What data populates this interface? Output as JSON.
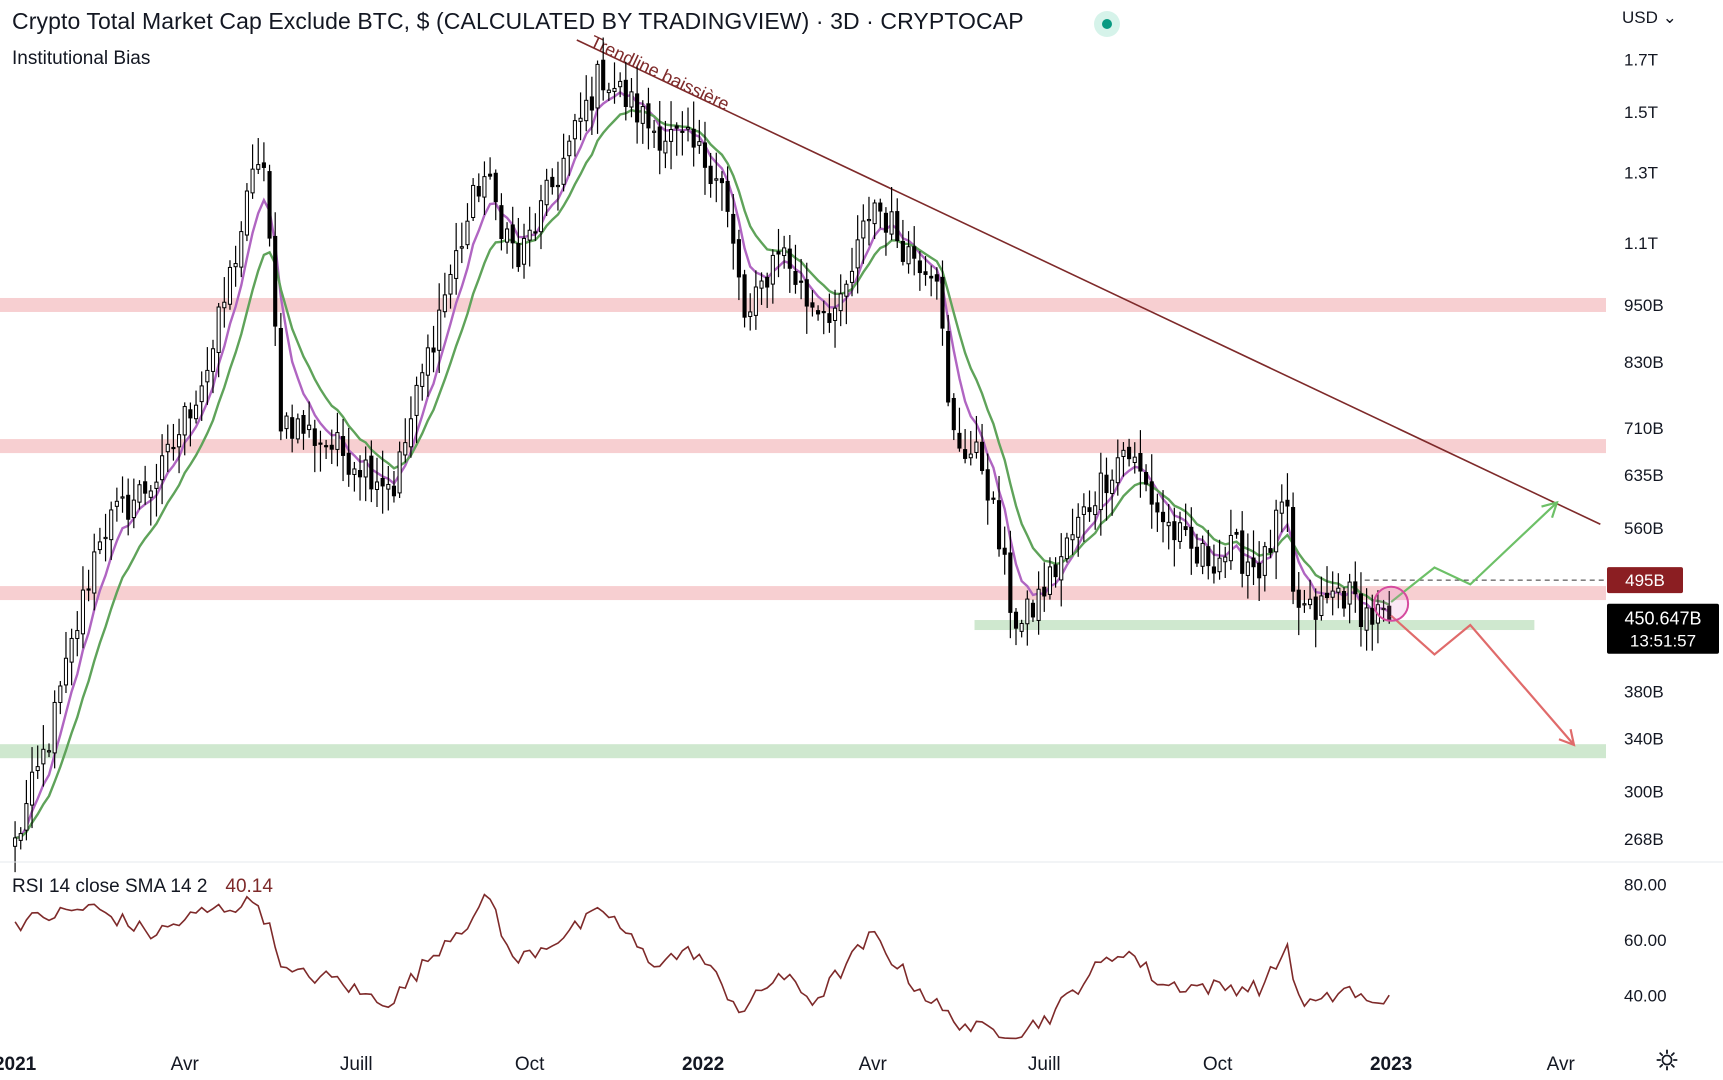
{
  "header": {
    "title": "Crypto Total Market Cap Exclude BTC, $ (CALCULATED BY TRADINGVIEW) · 3D · CRYPTOCAP",
    "indicator": "Institutional Bias",
    "currency": "USD"
  },
  "price_axis": {
    "labels": [
      {
        "text": "1.7T",
        "value": 1700
      },
      {
        "text": "1.5T",
        "value": 1500
      },
      {
        "text": "1.3T",
        "value": 1300
      },
      {
        "text": "1.1T",
        "value": 1100
      },
      {
        "text": "950B",
        "value": 950
      },
      {
        "text": "830B",
        "value": 830
      },
      {
        "text": "710B",
        "value": 710
      },
      {
        "text": "635B",
        "value": 635
      },
      {
        "text": "560B",
        "value": 560
      },
      {
        "text": "380B",
        "value": 380
      },
      {
        "text": "340B",
        "value": 340
      },
      {
        "text": "300B",
        "value": 300
      },
      {
        "text": "268B",
        "value": 268
      }
    ],
    "tag_level": {
      "text": "495B",
      "value": 495
    },
    "tag_price": {
      "text": "450.647B",
      "countdown": "13:51:57",
      "value": 450.647
    }
  },
  "time_axis": {
    "labels": [
      {
        "text": "2021",
        "date": "2021-01-01",
        "bold": true
      },
      {
        "text": "Avr",
        "date": "2021-04-01",
        "bold": false
      },
      {
        "text": "Juill",
        "date": "2021-07-01",
        "bold": false
      },
      {
        "text": "Oct",
        "date": "2021-10-01",
        "bold": false
      },
      {
        "text": "2022",
        "date": "2022-01-01",
        "bold": true
      },
      {
        "text": "Avr",
        "date": "2022-04-01",
        "bold": false
      },
      {
        "text": "Juill",
        "date": "2022-07-01",
        "bold": false
      },
      {
        "text": "Oct",
        "date": "2022-10-01",
        "bold": false
      },
      {
        "text": "2023",
        "date": "2023-01-01",
        "bold": true
      },
      {
        "text": "Avr",
        "date": "2023-04-01",
        "bold": false
      }
    ]
  },
  "rsi": {
    "legend": "RSI 14 close SMA 14 2",
    "value": "40.14",
    "axis_labels": [
      {
        "text": "80.00",
        "value": 80
      },
      {
        "text": "60.00",
        "value": 60
      },
      {
        "text": "40.00",
        "value": 40
      }
    ]
  },
  "annotations": {
    "trendline_label": "Trendline baissière"
  },
  "colors": {
    "zone_red": "#f7cfd1",
    "zone_green": "#cfe8cf",
    "ema_fast": "#b065c2",
    "ema_slow": "#5fa35a",
    "trendline": "#7e2a2a",
    "rsi_line": "#7e2a2a",
    "tag_level_bg": "#8b1e22",
    "tag_price_bg": "#000000",
    "bull_arrow": "#6dc067",
    "bear_arrow": "#e06b6b"
  },
  "chart_data": {
    "type": "candlestick",
    "y_scale": "log",
    "y_unit": "B",
    "ylim": [
      255,
      1780
    ],
    "xlim": [
      "2020-12-24",
      "2023-04-25"
    ],
    "resistance_zones": [
      950,
      680,
      480
    ],
    "support_zones": [
      330
    ],
    "support_lines": [
      {
        "from": "2022-05-25",
        "to": "2023-03-18",
        "value": 445
      }
    ],
    "trendline": {
      "from": {
        "date": "2021-10-26",
        "value": 1780
      },
      "to": {
        "date": "2023-04-22",
        "value": 565
      }
    },
    "key_points": [
      {
        "date": "2021-01-01",
        "value": 265
      },
      {
        "date": "2021-01-20",
        "value": 345
      },
      {
        "date": "2021-02-15",
        "value": 555
      },
      {
        "date": "2021-03-20",
        "value": 640
      },
      {
        "date": "2021-04-15",
        "value": 840
      },
      {
        "date": "2021-05-12",
        "value": 1400
      },
      {
        "date": "2021-05-22",
        "value": 730
      },
      {
        "date": "2021-06-18",
        "value": 680
      },
      {
        "date": "2021-07-05",
        "value": 650
      },
      {
        "date": "2021-07-21",
        "value": 620
      },
      {
        "date": "2021-08-15",
        "value": 950
      },
      {
        "date": "2021-09-06",
        "value": 1300
      },
      {
        "date": "2021-09-25",
        "value": 1050
      },
      {
        "date": "2021-10-20",
        "value": 1350
      },
      {
        "date": "2021-11-08",
        "value": 1650
      },
      {
        "date": "2021-12-04",
        "value": 1450
      },
      {
        "date": "2021-12-25",
        "value": 1380
      },
      {
        "date": "2022-01-10",
        "value": 1300
      },
      {
        "date": "2022-01-24",
        "value": 900
      },
      {
        "date": "2022-02-10",
        "value": 1100
      },
      {
        "date": "2022-02-25",
        "value": 960
      },
      {
        "date": "2022-03-15",
        "value": 935
      },
      {
        "date": "2022-04-01",
        "value": 1220
      },
      {
        "date": "2022-04-20",
        "value": 1080
      },
      {
        "date": "2022-05-05",
        "value": 1040
      },
      {
        "date": "2022-05-12",
        "value": 700
      },
      {
        "date": "2022-05-30",
        "value": 650
      },
      {
        "date": "2022-06-13",
        "value": 470
      },
      {
        "date": "2022-06-18",
        "value": 440
      },
      {
        "date": "2022-07-05",
        "value": 500
      },
      {
        "date": "2022-07-28",
        "value": 610
      },
      {
        "date": "2022-08-13",
        "value": 680
      },
      {
        "date": "2022-09-01",
        "value": 575
      },
      {
        "date": "2022-09-20",
        "value": 520
      },
      {
        "date": "2022-10-10",
        "value": 530
      },
      {
        "date": "2022-10-25",
        "value": 510
      },
      {
        "date": "2022-11-06",
        "value": 600
      },
      {
        "date": "2022-11-10",
        "value": 470
      },
      {
        "date": "2022-11-20",
        "value": 455
      },
      {
        "date": "2022-12-05",
        "value": 485
      },
      {
        "date": "2022-12-20",
        "value": 455
      },
      {
        "date": "2022-12-31",
        "value": 452
      }
    ],
    "projection_bull": [
      {
        "date": "2023-01-01",
        "value": 470
      },
      {
        "date": "2023-01-24",
        "value": 510
      },
      {
        "date": "2023-02-12",
        "value": 490
      },
      {
        "date": "2023-03-30",
        "value": 595
      }
    ],
    "projection_bear": [
      {
        "date": "2023-01-01",
        "value": 455
      },
      {
        "date": "2023-01-24",
        "value": 415
      },
      {
        "date": "2023-02-12",
        "value": 445
      },
      {
        "date": "2023-04-08",
        "value": 335
      }
    ],
    "decision_circle": {
      "date": "2023-01-01",
      "value": 468
    },
    "rsi_ylim": [
      24,
      86
    ],
    "rsi_key_points": [
      {
        "date": "2021-01-01",
        "value": 66
      },
      {
        "date": "2021-02-10",
        "value": 72
      },
      {
        "date": "2021-03-15",
        "value": 62
      },
      {
        "date": "2021-04-10",
        "value": 70
      },
      {
        "date": "2021-05-10",
        "value": 74
      },
      {
        "date": "2021-05-25",
        "value": 48
      },
      {
        "date": "2021-06-20",
        "value": 46
      },
      {
        "date": "2021-07-05",
        "value": 40
      },
      {
        "date": "2021-07-20",
        "value": 38
      },
      {
        "date": "2021-08-20",
        "value": 62
      },
      {
        "date": "2021-09-06",
        "value": 70
      },
      {
        "date": "2021-09-08",
        "value": 80
      },
      {
        "date": "2021-09-22",
        "value": 52
      },
      {
        "date": "2021-10-20",
        "value": 62
      },
      {
        "date": "2021-11-10",
        "value": 71
      },
      {
        "date": "2021-12-04",
        "value": 52
      },
      {
        "date": "2021-12-28",
        "value": 56
      },
      {
        "date": "2022-01-22",
        "value": 34
      },
      {
        "date": "2022-02-10",
        "value": 48
      },
      {
        "date": "2022-03-01",
        "value": 38
      },
      {
        "date": "2022-04-01",
        "value": 62
      },
      {
        "date": "2022-04-20",
        "value": 46
      },
      {
        "date": "2022-05-12",
        "value": 32
      },
      {
        "date": "2022-05-25",
        "value": 28
      },
      {
        "date": "2022-06-18",
        "value": 27
      },
      {
        "date": "2022-07-05",
        "value": 33
      },
      {
        "date": "2022-07-25",
        "value": 48
      },
      {
        "date": "2022-08-13",
        "value": 57
      },
      {
        "date": "2022-09-01",
        "value": 44
      },
      {
        "date": "2022-10-01",
        "value": 43
      },
      {
        "date": "2022-10-25",
        "value": 43
      },
      {
        "date": "2022-11-08",
        "value": 59
      },
      {
        "date": "2022-11-12",
        "value": 38
      },
      {
        "date": "2022-11-25",
        "value": 37
      },
      {
        "date": "2022-12-08",
        "value": 43
      },
      {
        "date": "2022-12-22",
        "value": 36
      },
      {
        "date": "2022-12-31",
        "value": 40.14
      }
    ]
  }
}
